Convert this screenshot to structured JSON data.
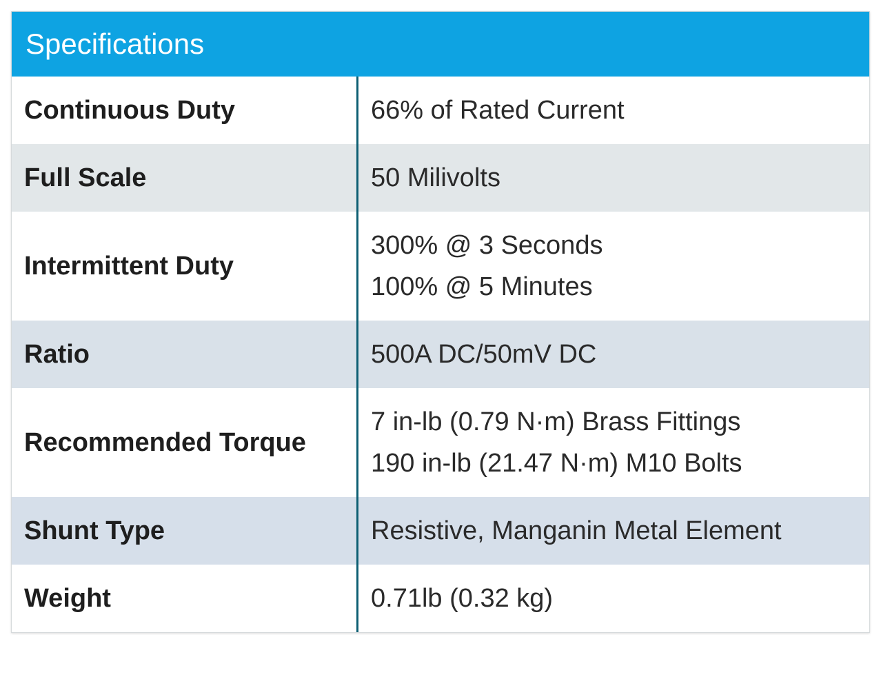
{
  "header": {
    "title": "Specifications"
  },
  "table": {
    "rows": [
      {
        "label": "Continuous Duty",
        "value": [
          "66% of Rated Current"
        ]
      },
      {
        "label": "Full Scale",
        "value": [
          "50 Milivolts"
        ]
      },
      {
        "label": "Intermittent Duty",
        "value": [
          "300% @ 3 Seconds",
          "100% @ 5 Minutes"
        ]
      },
      {
        "label": "Ratio",
        "value": [
          "500A DC/50mV DC"
        ]
      },
      {
        "label": "Recommended Torque",
        "value": [
          "7 in-lb (0.79 N·m) Brass Fittings",
          "190 in-lb (21.47 N·m) M10 Bolts"
        ]
      },
      {
        "label": "Shunt Type",
        "value": [
          "Resistive, Manganin Metal Element"
        ]
      },
      {
        "label": "Weight",
        "value": [
          "0.71lb (0.32 kg)"
        ]
      }
    ]
  }
}
